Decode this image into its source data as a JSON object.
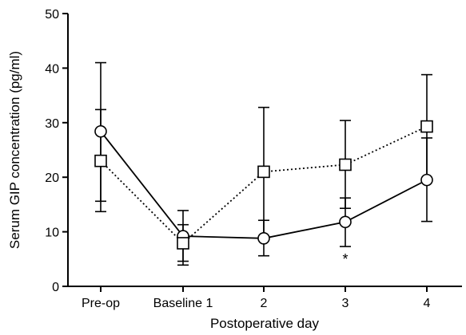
{
  "chart_data": {
    "type": "line",
    "categories": [
      "Pre-op",
      "Baseline 1",
      "2",
      "3",
      "4"
    ],
    "xlabel": "Postoperative day",
    "ylabel": "Serum GIP concentration (pg/ml)",
    "ylim": [
      0,
      50
    ],
    "yticks": [
      0,
      10,
      20,
      30,
      40,
      50
    ],
    "grid": false,
    "series": [
      {
        "marker": "circle",
        "line_style": "solid",
        "values": [
          28.4,
          9.2,
          8.8,
          11.8,
          19.5
        ],
        "error_low": [
          15.6,
          4.6,
          5.6,
          7.3,
          11.9
        ],
        "error_high": [
          41.0,
          13.9,
          12.1,
          16.2,
          27.2
        ]
      },
      {
        "marker": "square",
        "line_style": "dotted",
        "values": [
          23.0,
          7.9,
          21.0,
          22.3,
          29.3
        ],
        "error_low": [
          13.7,
          3.9,
          9.1,
          14.3,
          19.7
        ],
        "error_high": [
          32.4,
          11.3,
          32.8,
          30.4,
          38.8
        ]
      }
    ],
    "annotations": [
      {
        "text": "*",
        "category": "3"
      }
    ]
  }
}
